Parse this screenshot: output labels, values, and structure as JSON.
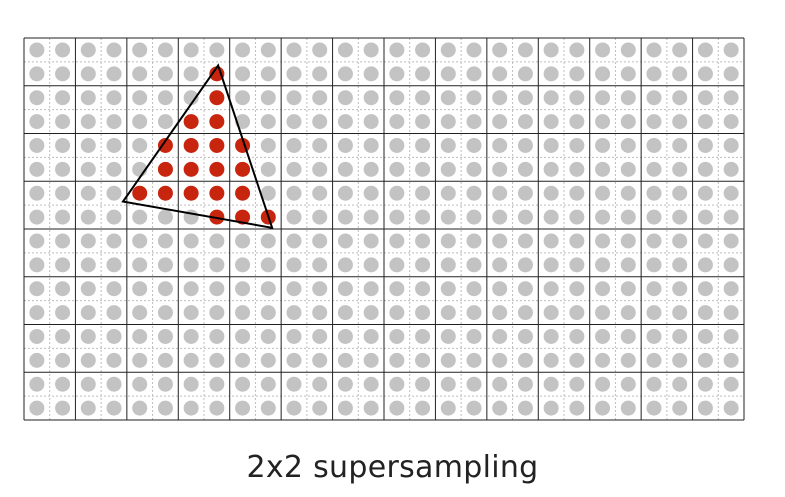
{
  "caption": "2x2 supersampling",
  "grid": {
    "pixel_columns": 14,
    "pixel_rows": 8,
    "subsamples_per_pixel": "2x2"
  },
  "colors": {
    "pixel_line": "#222222",
    "subpixel_line": "#bdbdbd",
    "sample_outside": "#c3c3c3",
    "sample_inside": "#c8250f",
    "triangle_edge": "#000000",
    "background": "#ffffff"
  },
  "triangle": {
    "vertices_sample_units": [
      [
        7.55,
        1.15
      ],
      [
        3.85,
        6.85
      ],
      [
        9.65,
        7.95
      ]
    ]
  }
}
